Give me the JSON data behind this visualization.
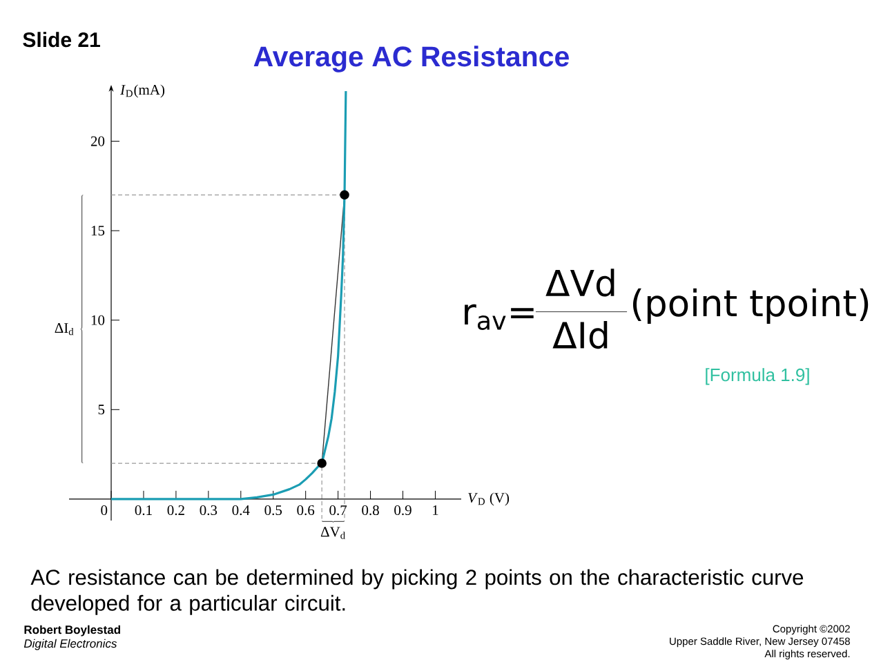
{
  "chart_data": {
    "type": "line",
    "title": "Average AC Resistance",
    "xlabel": "*V*$_{D}$ (V)",
    "ylabel": "*I*$_{D}$(mA)",
    "xlim": [
      -0.13,
      1.08
    ],
    "ylim": [
      -1.2,
      22.8
    ],
    "xticks": [
      0,
      0.1,
      0.2,
      0.3,
      0.4,
      0.5,
      0.6,
      0.7,
      0.8,
      0.9,
      1
    ],
    "yticks": [
      5,
      10,
      15,
      20
    ],
    "series": [
      {
        "color": "#999999",
        "line_style": "dashed",
        "x": [
          0,
          0.65,
          0.65
        ],
        "values": [
          2,
          2,
          -1.1
        ]
      },
      {
        "color": "#999999",
        "line_style": "dashed",
        "x": [
          0,
          0.72,
          0.72
        ],
        "values": [
          17,
          17,
          -1.1
        ]
      },
      {
        "color": "#333333",
        "x": [
          0.65,
          0.72
        ],
        "values": [
          2,
          17
        ]
      },
      {
        "color": "#1b9db3",
        "x": [
          0,
          0.1,
          0.2,
          0.3,
          0.4,
          0.45,
          0.5,
          0.55,
          0.58,
          0.6,
          0.62,
          0.64,
          0.65,
          0.67,
          0.68,
          0.69,
          0.7,
          0.71,
          0.715,
          0.72,
          0.724
        ],
        "values": [
          0,
          0,
          0,
          0,
          0,
          0.1,
          0.25,
          0.55,
          0.8,
          1.1,
          1.45,
          1.85,
          2,
          3.5,
          4.5,
          6,
          8,
          11.5,
          13.5,
          17,
          22.8
        ]
      },
      {
        "type": "scatter",
        "color": "#000000",
        "marker": "circle",
        "x": [
          0.65,
          0.72
        ],
        "values": [
          2,
          17
        ]
      }
    ],
    "annotations": [
      "Slide 21",
      "AC resistance can be determined by picking 2 points on the characteristic curve developed for a particular circuit.",
      "Robert Boylestad",
      "Digital Electronics",
      "Copyright ©2002",
      "Upper Saddle River, New Jersey 07458",
      "All rights reserved.",
      "r$_{av}$=",
      "ΔVd",
      "ΔId",
      "(point tpoint)",
      "[Formula 1.9]",
      "ΔI$_{d}$",
      "ΔV$_{d}$"
    ]
  }
}
